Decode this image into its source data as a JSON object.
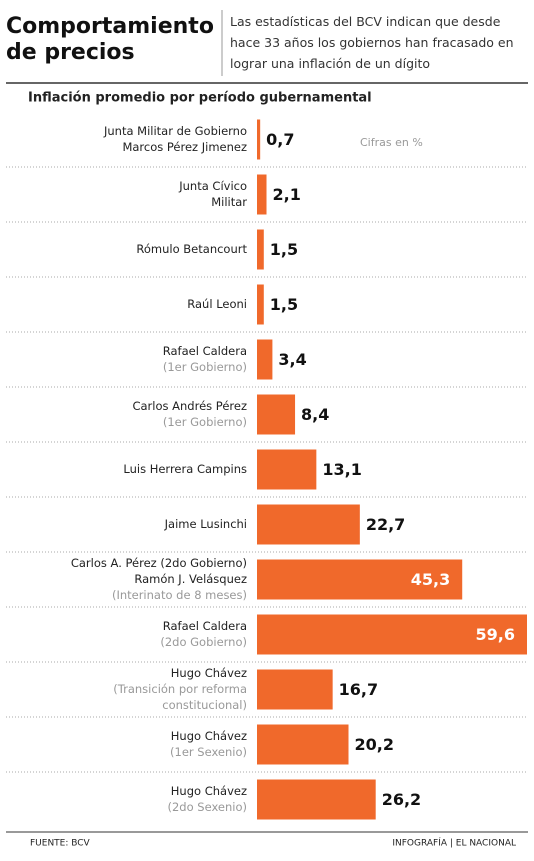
{
  "chart_data": {
    "type": "bar",
    "orientation": "horizontal",
    "title": "Comportamiento de precios",
    "subtitle": "Las estadísticas del BCV indican que desde hace 33 años los gobiernos han fracasado en lograr una inflación de un dígito",
    "chart_title": "Inflación promedio por período gubernamental",
    "unit_note": "Cifras en %",
    "source": "FUENTE: BCV",
    "credit": "INFOGRAFÍA | EL NACIONAL",
    "categories": [
      [
        "Junta Militar de Gobierno",
        "Marcos Pérez Jimenez"
      ],
      [
        "Junta Cívico",
        "Militar"
      ],
      [
        "Rómulo Betancourt"
      ],
      [
        "Raúl Leoni"
      ],
      [
        "Rafael Caldera"
      ],
      [
        "Carlos Andrés Pérez"
      ],
      [
        "Luis Herrera Campins"
      ],
      [
        "Jaime Lusinchi"
      ],
      [
        "Carlos A. Pérez (2do Gobierno)",
        "Ramón J. Velásquez"
      ],
      [
        "Rafael Caldera"
      ],
      [
        "Hugo Chávez"
      ],
      [
        "Hugo Chávez"
      ],
      [
        "Hugo Chávez"
      ]
    ],
    "category_notes": [
      [],
      [],
      [],
      [],
      [
        "(1er Gobierno)"
      ],
      [
        "(1er Gobierno)"
      ],
      [],
      [],
      [
        "(Interinato de 8 meses)"
      ],
      [
        "(2do Gobierno)"
      ],
      [
        "(Transición por reforma",
        "constitucional)"
      ],
      [
        "(1er Sexenio)"
      ],
      [
        "(2do Sexenio)"
      ]
    ],
    "values": [
      0.7,
      2.1,
      1.5,
      1.5,
      3.4,
      8.4,
      13.1,
      22.7,
      45.3,
      59.6,
      16.7,
      20.2,
      26.2
    ],
    "value_labels": [
      "0,7",
      "2,1",
      "1,5",
      "1,5",
      "3,4",
      "8,4",
      "13,1",
      "22,7",
      "45,3",
      "59,6",
      "16,7",
      "20,2",
      "26,2"
    ],
    "color": "#f0692b",
    "xlim": [
      0,
      59.6
    ]
  }
}
